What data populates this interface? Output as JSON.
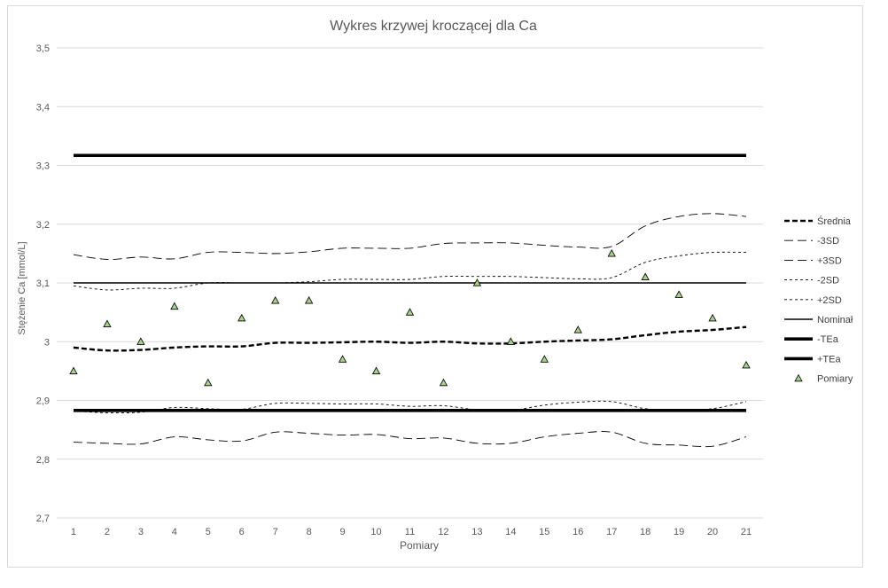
{
  "chart_data": {
    "type": "line",
    "title": "Wykres krzywej kroczącej dla Ca",
    "xlabel": "Pomiary",
    "ylabel": "Stężenie  Ca [mmol/L]",
    "ylim": [
      2.7,
      3.5
    ],
    "ytick_values": [
      2.7,
      2.8,
      2.9,
      3.0,
      3.1,
      3.2,
      3.3,
      3.4,
      3.5
    ],
    "ytick_labels": [
      "2,7",
      "2,8",
      "2,9",
      "3",
      "3,1",
      "3,2",
      "3,3",
      "3,4",
      "3,5"
    ],
    "grid": true,
    "legend_position": "right",
    "categories": [
      "1",
      "2",
      "3",
      "4",
      "5",
      "6",
      "7",
      "8",
      "9",
      "10",
      "11",
      "12",
      "13",
      "14",
      "15",
      "16",
      "17",
      "18",
      "19",
      "20",
      "21"
    ],
    "series": [
      {
        "name": "Średnia",
        "style": "dashed-bold",
        "values": [
          2.99,
          2.985,
          2.986,
          2.99,
          2.992,
          2.992,
          2.998,
          2.998,
          2.999,
          3.0,
          2.998,
          3.0,
          2.997,
          2.997,
          3.0,
          3.002,
          3.004,
          3.011,
          3.017,
          3.02,
          3.025
        ]
      },
      {
        "name": "-3SD",
        "style": "longdash",
        "values": [
          2.829,
          2.827,
          2.826,
          2.838,
          2.833,
          2.831,
          2.846,
          2.844,
          2.841,
          2.842,
          2.835,
          2.836,
          2.827,
          2.827,
          2.838,
          2.844,
          2.846,
          2.827,
          2.824,
          2.822,
          2.838
        ]
      },
      {
        "name": "+3SD",
        "style": "longdash",
        "values": [
          3.148,
          3.14,
          3.144,
          3.141,
          3.152,
          3.152,
          3.15,
          3.153,
          3.159,
          3.159,
          3.159,
          3.167,
          3.168,
          3.168,
          3.164,
          3.161,
          3.162,
          3.197,
          3.213,
          3.218,
          3.213
        ]
      },
      {
        "name": "-2SD",
        "style": "shortdash",
        "values": [
          2.882,
          2.879,
          2.88,
          2.888,
          2.886,
          2.885,
          2.895,
          2.895,
          2.894,
          2.894,
          2.89,
          2.891,
          2.884,
          2.883,
          2.892,
          2.897,
          2.898,
          2.886,
          2.884,
          2.886,
          2.898
        ]
      },
      {
        "name": "+2SD",
        "style": "shortdash",
        "values": [
          3.095,
          3.088,
          3.091,
          3.091,
          3.1,
          3.1,
          3.1,
          3.102,
          3.106,
          3.106,
          3.106,
          3.111,
          3.111,
          3.111,
          3.109,
          3.107,
          3.109,
          3.135,
          3.146,
          3.152,
          3.152
        ]
      },
      {
        "name": "Nominał",
        "style": "solid",
        "values": [
          3.1,
          3.1,
          3.1,
          3.1,
          3.1,
          3.1,
          3.1,
          3.1,
          3.1,
          3.1,
          3.1,
          3.1,
          3.1,
          3.1,
          3.1,
          3.1,
          3.1,
          3.1,
          3.1,
          3.1,
          3.1
        ]
      },
      {
        "name": "-TEa",
        "style": "solid-bold",
        "values": [
          2.883,
          2.883,
          2.883,
          2.883,
          2.883,
          2.883,
          2.883,
          2.883,
          2.883,
          2.883,
          2.883,
          2.883,
          2.883,
          2.883,
          2.883,
          2.883,
          2.883,
          2.883,
          2.883,
          2.883,
          2.883
        ]
      },
      {
        "name": "+TEa",
        "style": "solid-bold",
        "values": [
          3.317,
          3.317,
          3.317,
          3.317,
          3.317,
          3.317,
          3.317,
          3.317,
          3.317,
          3.317,
          3.317,
          3.317,
          3.317,
          3.317,
          3.317,
          3.317,
          3.317,
          3.317,
          3.317,
          3.317,
          3.317
        ]
      },
      {
        "name": "Pomiary",
        "style": "marker-triangle",
        "marker_color": "#a9d18e",
        "values": [
          2.95,
          3.03,
          3.0,
          3.06,
          2.93,
          3.04,
          3.07,
          3.07,
          2.97,
          2.95,
          3.05,
          2.93,
          3.1,
          3.0,
          2.97,
          3.02,
          3.15,
          3.11,
          3.08,
          3.04,
          2.96
        ]
      }
    ]
  }
}
